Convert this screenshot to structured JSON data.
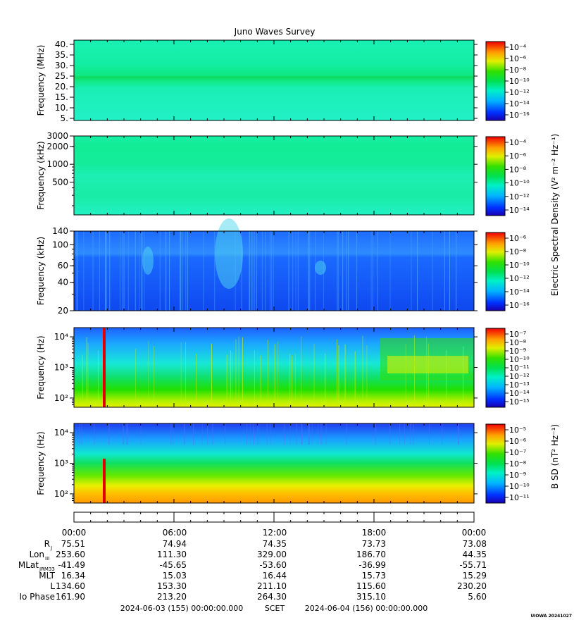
{
  "title": "Juno Waves Survey",
  "credit": "UIOWA 20241027",
  "colorbar_label_e": "Electric Spectral Density (V² m⁻² Hz⁻¹)",
  "colorbar_label_b": "B SD (nT² Hz⁻¹)",
  "chart_data": [
    {
      "type": "heatmap",
      "name": "panel1",
      "ylabel": "Frequency (MHz)",
      "yscale": "linear",
      "ylim": [
        4,
        42
      ],
      "yticks": [
        5,
        10,
        15,
        20,
        25,
        30,
        35,
        40
      ],
      "ytick_labels": [
        "5.",
        "10.",
        "15.",
        "20.",
        "25.",
        "30.",
        "35.",
        "40."
      ],
      "colorbar": {
        "ticks": [
          "10⁻⁴",
          "10⁻⁶",
          "10⁻⁸",
          "10⁻¹⁰",
          "10⁻¹²",
          "10⁻¹⁴",
          "10⁻¹⁶"
        ]
      }
    },
    {
      "type": "heatmap",
      "name": "panel2",
      "ylabel": "Frequency (kHz)",
      "yscale": "log",
      "ylim": [
        140,
        3000
      ],
      "yticks": [
        500,
        1000,
        2000,
        3000
      ],
      "ytick_labels": [
        "500",
        "1000",
        "2000",
        "3000"
      ],
      "colorbar": {
        "ticks": [
          "10⁻⁴",
          "10⁻⁶",
          "10⁻⁸",
          "10⁻¹⁰",
          "10⁻¹²",
          "10⁻¹⁴"
        ]
      }
    },
    {
      "type": "heatmap",
      "name": "panel3",
      "ylabel": "Frequency (kHz)",
      "yscale": "log",
      "ylim": [
        20,
        140
      ],
      "yticks": [
        20,
        40,
        60,
        100,
        140
      ],
      "ytick_labels": [
        "20",
        "40",
        "60",
        "100",
        "140"
      ],
      "colorbar": {
        "ticks": [
          "10⁻⁶",
          "10⁻⁸",
          "10⁻¹⁰",
          "10⁻¹²",
          "10⁻¹⁴",
          "10⁻¹⁶"
        ]
      }
    },
    {
      "type": "heatmap",
      "name": "panel4",
      "ylabel": "Frequency (Hz)",
      "yscale": "log",
      "ylim": [
        50,
        20000
      ],
      "yticks": [
        100,
        1000,
        10000
      ],
      "ytick_labels": [
        "10²",
        "10³",
        "10⁴"
      ],
      "colorbar": {
        "ticks": [
          "10⁻⁷",
          "10⁻⁸",
          "10⁻⁹",
          "10⁻¹⁰",
          "10⁻¹¹",
          "10⁻¹²",
          "10⁻¹³",
          "10⁻¹⁴",
          "10⁻¹⁵"
        ]
      }
    },
    {
      "type": "heatmap",
      "name": "panel5",
      "ylabel": "Frequency (Hz)",
      "yscale": "log",
      "ylim": [
        50,
        20000
      ],
      "yticks": [
        100,
        1000,
        10000
      ],
      "ytick_labels": [
        "10²",
        "10³",
        "10⁴"
      ],
      "colorbar": {
        "ticks": [
          "10⁻⁵",
          "10⁻⁶",
          "10⁻⁷",
          "10⁻⁸",
          "10⁻⁹",
          "10⁻¹⁰",
          "10⁻¹¹"
        ]
      }
    }
  ],
  "xaxis": {
    "ticks": [
      "00:00",
      "06:00",
      "12:00",
      "18:00",
      "00:00"
    ],
    "start": "2024-06-03 (155) 00:00:00.000",
    "center_label": "SCET",
    "end": "2024-06-04 (156) 00:00:00.000"
  },
  "ephemeris": [
    {
      "label": "R",
      "sub": "J",
      "values": [
        "75.51",
        "74.94",
        "74.35",
        "73.73",
        "73.08"
      ]
    },
    {
      "label": "Lon",
      "sub": "III",
      "values": [
        "253.60",
        "111.30",
        "329.00",
        "186.70",
        "44.35"
      ]
    },
    {
      "label": "MLat",
      "sub": "JRM33",
      "values": [
        "-41.49",
        "-45.65",
        "-53.60",
        "-36.99",
        "-55.71"
      ]
    },
    {
      "label": "MLT",
      "sub": "",
      "values": [
        "16.34",
        "15.03",
        "16.44",
        "15.73",
        "15.29"
      ]
    },
    {
      "label": "L",
      "sub": "",
      "values": [
        "134.60",
        "153.30",
        "211.10",
        "115.60",
        "230.20"
      ]
    },
    {
      "label": "Io Phase",
      "sub": "",
      "values": [
        "161.90",
        "213.20",
        "264.30",
        "315.10",
        "5.60"
      ]
    }
  ]
}
